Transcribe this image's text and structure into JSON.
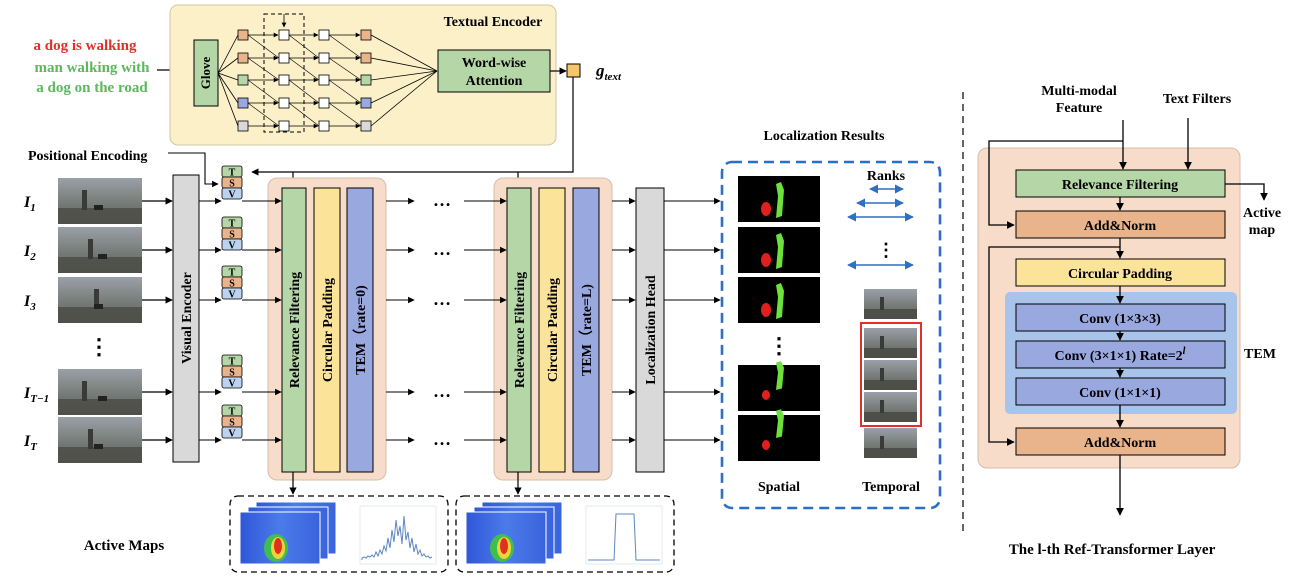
{
  "query": {
    "line1": "a dog is walking",
    "line2": "man walking with",
    "line3": "a dog on the road",
    "color1": "#e0302c",
    "color2": "#5cb85c"
  },
  "textual_encoder": {
    "title": "Textual Encoder",
    "glove": "Glove",
    "attention_line1": "Word-wise",
    "attention_line2": "Attention",
    "g_main": "g",
    "g_sub": "text"
  },
  "positional_encoding": "Positional Encoding",
  "frames": [
    {
      "label": "I",
      "sub": "1"
    },
    {
      "label": "I",
      "sub": "2"
    },
    {
      "label": "I",
      "sub": "3"
    },
    {
      "label": "I",
      "sub": "T−1"
    },
    {
      "label": "I",
      "sub": "T"
    }
  ],
  "vdots": "⋮",
  "hdots": "…",
  "tsv": [
    "T",
    "S",
    "V"
  ],
  "visual_encoder": "Visual Encoder",
  "stage1": {
    "relevance": "Relevance Filtering",
    "circular": "Circular Padding",
    "tem": "TEM（rate=0)"
  },
  "stage2": {
    "relevance": "Relevance Filtering",
    "circular": "Circular Padding",
    "tem": "TEM（rate=L)"
  },
  "localization_head": "Localization Head",
  "active_maps": "Active Maps",
  "results": {
    "title": "Localization Results",
    "ranks": "Ranks",
    "spatial": "Spatial",
    "temporal": "Temporal"
  },
  "layer": {
    "input1_line1": "Multi-modal",
    "input1_line2": "Feature",
    "input2": "Text Filters",
    "relevance": "Relevance Filtering",
    "addnorm1": "Add&Norm",
    "active_line1": "Active",
    "active_line2": "map",
    "circular": "Circular Padding",
    "conv1": "Conv (1×3×3)",
    "conv2": "Conv (3×1×1) Rate=2",
    "conv2_sup": "l",
    "conv3": "Conv (1×1×1)",
    "tem": "TEM",
    "addnorm2": "Add&Norm",
    "caption": "The l-th Ref-Transformer Layer"
  },
  "colors": {
    "encoder_bg": "#fbf0c8",
    "stage_bg": "#f6dcc9",
    "green": "#b5d7a8",
    "yellow": "#fbe49a",
    "blue": "#9aa8e0",
    "gray": "#d9d9d9",
    "orange": "#e9b48c",
    "tem_bg": "#a9c4ea",
    "dashed_blue": "#2e6fc1"
  }
}
